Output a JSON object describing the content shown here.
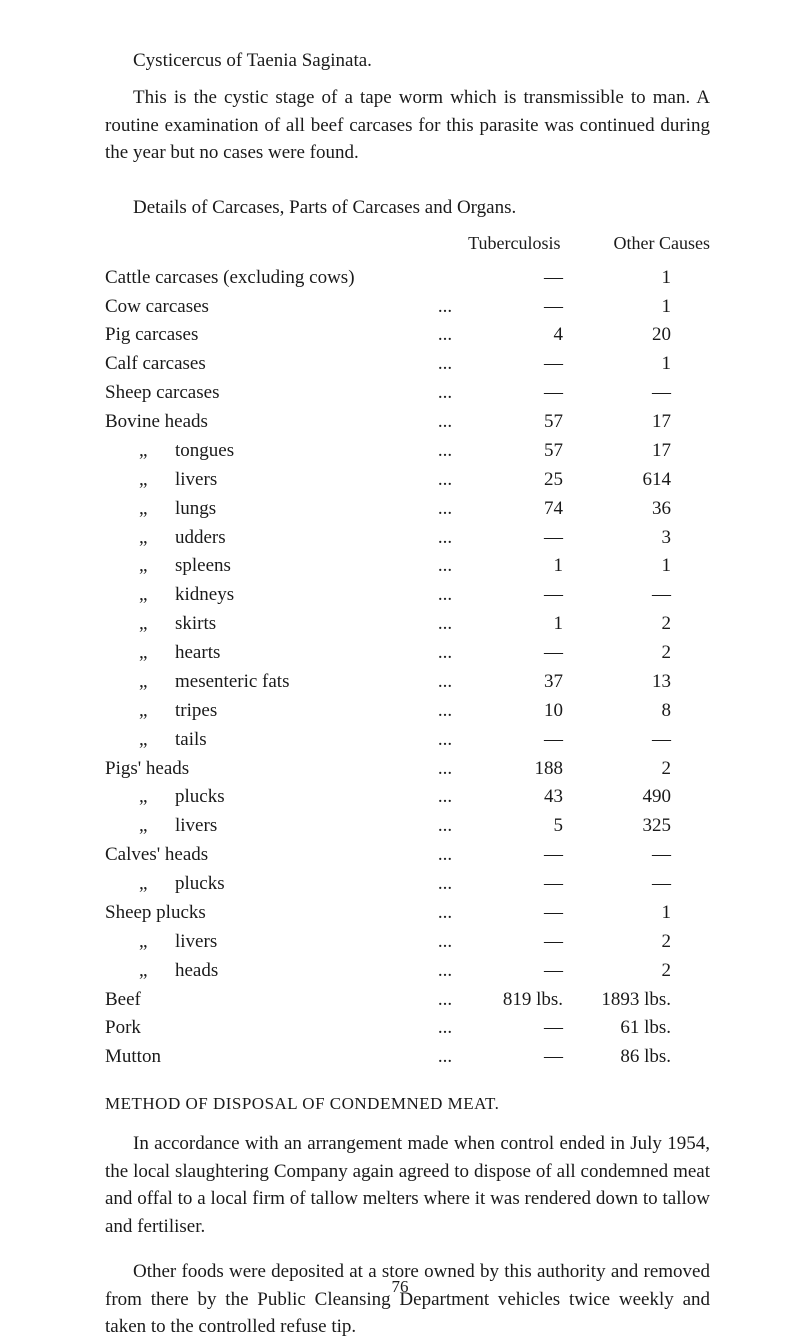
{
  "top": {
    "title": "Cysticercus of Taenia Saginata.",
    "intro": "This is the cystic stage of a tape worm which is transmissible to man. A routine examination of all beef carcases for this parasite was continued during the year but no cases were found."
  },
  "table": {
    "heading": "Details of Carcases, Parts of Carcases and Organs.",
    "col_tb": "Tuberculosis",
    "col_oc": "Other Causes",
    "rows": [
      {
        "label": "Cattle carcases (excluding cows)",
        "tb": "—",
        "oc": "1",
        "indent": 0,
        "prefix": ""
      },
      {
        "label": "Cow carcases",
        "tb": "—",
        "oc": "1",
        "indent": 0,
        "prefix": "",
        "dots": true
      },
      {
        "label": "Pig carcases",
        "tb": "4",
        "oc": "20",
        "indent": 0,
        "prefix": "",
        "dots": true
      },
      {
        "label": "Calf carcases",
        "tb": "—",
        "oc": "1",
        "indent": 0,
        "prefix": "",
        "dots": true
      },
      {
        "label": "Sheep carcases",
        "tb": "—",
        "oc": "—",
        "indent": 0,
        "prefix": "",
        "dots": true
      },
      {
        "label": "Bovine heads",
        "tb": "57",
        "oc": "17",
        "indent": 0,
        "prefix": "",
        "dots": true
      },
      {
        "label": "tongues",
        "tb": "57",
        "oc": "17",
        "indent": 1,
        "prefix": "„",
        "dots": true
      },
      {
        "label": "livers",
        "tb": "25",
        "oc": "614",
        "indent": 1,
        "prefix": "„",
        "dots": true
      },
      {
        "label": "lungs",
        "tb": "74",
        "oc": "36",
        "indent": 1,
        "prefix": "„",
        "dots": true
      },
      {
        "label": "udders",
        "tb": "—",
        "oc": "3",
        "indent": 1,
        "prefix": "„",
        "dots": true
      },
      {
        "label": "spleens",
        "tb": "1",
        "oc": "1",
        "indent": 1,
        "prefix": "„",
        "dots": true
      },
      {
        "label": "kidneys",
        "tb": "—",
        "oc": "—",
        "indent": 1,
        "prefix": "„",
        "dots": true
      },
      {
        "label": "skirts",
        "tb": "1",
        "oc": "2",
        "indent": 1,
        "prefix": "„",
        "dots": true
      },
      {
        "label": "hearts",
        "tb": "—",
        "oc": "2",
        "indent": 1,
        "prefix": "„",
        "dots": true
      },
      {
        "label": "mesenteric fats",
        "tb": "37",
        "oc": "13",
        "indent": 1,
        "prefix": "„",
        "dots": true
      },
      {
        "label": "tripes",
        "tb": "10",
        "oc": "8",
        "indent": 1,
        "prefix": "„",
        "dots": true
      },
      {
        "label": "tails",
        "tb": "—",
        "oc": "—",
        "indent": 1,
        "prefix": "„",
        "dots": true
      },
      {
        "label": "Pigs' heads",
        "tb": "188",
        "oc": "2",
        "indent": 0,
        "prefix": "",
        "dots": true
      },
      {
        "label": "plucks",
        "tb": "43",
        "oc": "490",
        "indent": 1,
        "prefix": "„",
        "dots": true
      },
      {
        "label": "livers",
        "tb": "5",
        "oc": "325",
        "indent": 1,
        "prefix": "„",
        "dots": true
      },
      {
        "label": "Calves' heads",
        "tb": "—",
        "oc": "—",
        "indent": 0,
        "prefix": "",
        "dots": true
      },
      {
        "label": "plucks",
        "tb": "—",
        "oc": "—",
        "indent": 1,
        "prefix": "„",
        "dots": true
      },
      {
        "label": "Sheep plucks",
        "tb": "—",
        "oc": "1",
        "indent": 0,
        "prefix": "",
        "dots": true
      },
      {
        "label": "livers",
        "tb": "—",
        "oc": "2",
        "indent": 1,
        "prefix": "„",
        "dots": true
      },
      {
        "label": "heads",
        "tb": "—",
        "oc": "2",
        "indent": 1,
        "prefix": "„",
        "dots": true
      },
      {
        "label": "Beef",
        "tb": "819 lbs.",
        "oc": "1893 lbs.",
        "indent": 0,
        "prefix": "",
        "dots": true
      },
      {
        "label": "Pork",
        "tb": "—",
        "oc": "61 lbs.",
        "indent": 0,
        "prefix": "",
        "dots": true
      },
      {
        "label": "Mutton",
        "tb": "—",
        "oc": "86 lbs.",
        "indent": 0,
        "prefix": "",
        "dots": true
      }
    ]
  },
  "method": {
    "heading": "METHOD OF DISPOSAL OF CONDEMNED MEAT.",
    "para1": "In accordance with an arrangement made when control ended in July 1954, the local slaughtering Company again agreed to dispose of all condemned meat and offal to a local firm of tallow melters where it was rendered down to tallow and fertiliser.",
    "para2": "Other foods were deposited at a store owned by this authority and removed from there by the Public Cleansing Department vehicles twice weekly and taken to the controlled refuse tip."
  },
  "page_number": "76"
}
